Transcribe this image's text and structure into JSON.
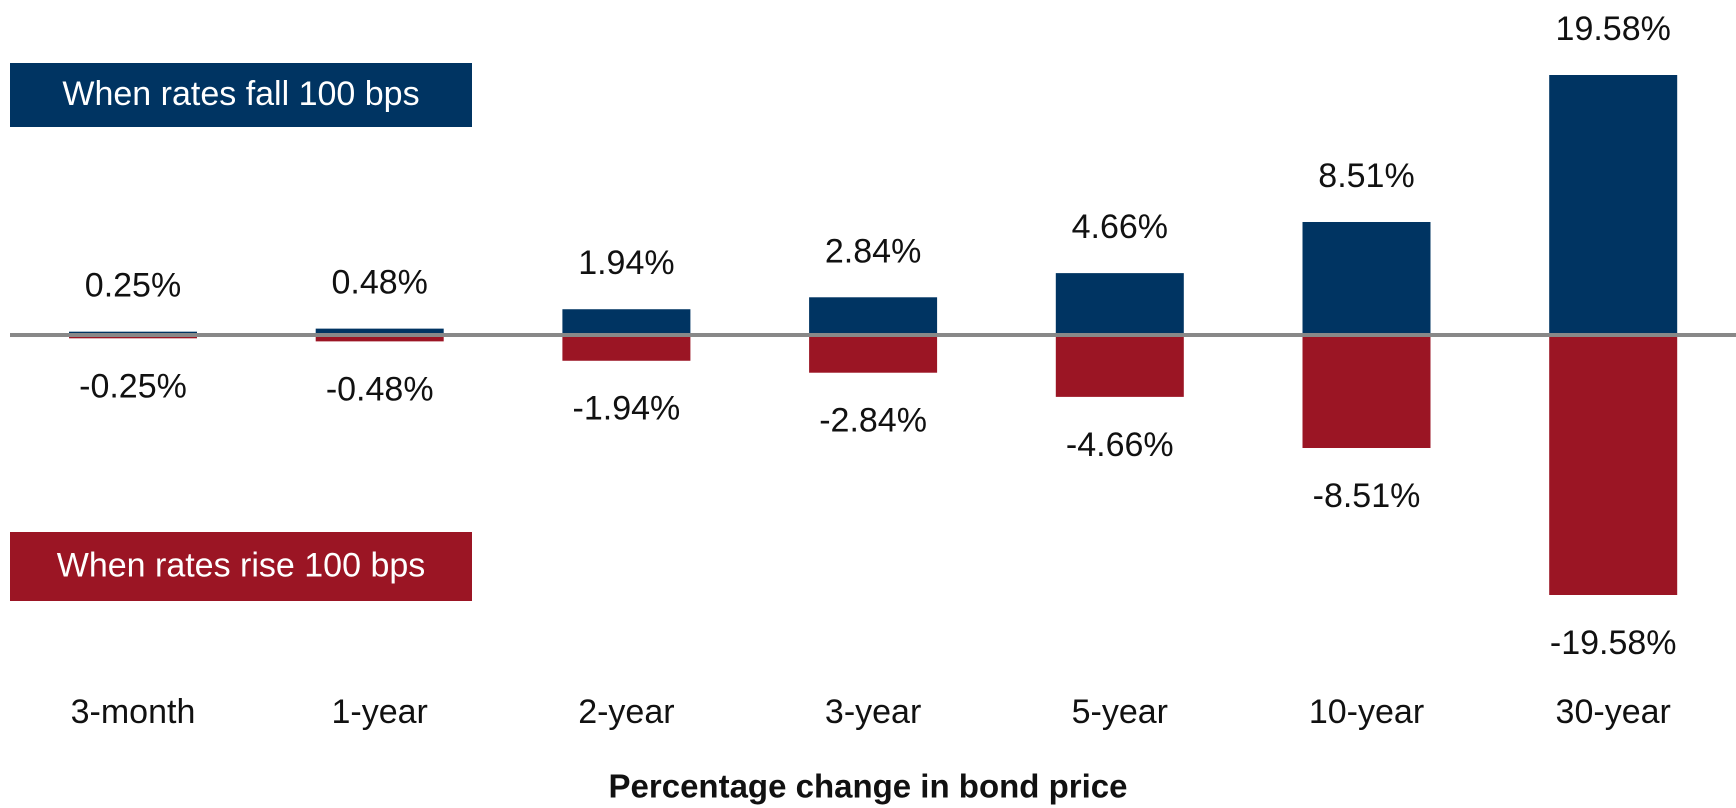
{
  "chart_data": {
    "type": "bar",
    "x_label": "Percentage change in bond price",
    "categories": [
      "3-month",
      "1-year",
      "2-year",
      "3-year",
      "5-year",
      "10-year",
      "30-year"
    ],
    "series": [
      {
        "name": "When rates fall 100 bps",
        "color": "#003462",
        "values": [
          0.25,
          0.48,
          1.94,
          2.84,
          4.66,
          8.51,
          19.58
        ],
        "value_labels": [
          "0.25%",
          "0.48%",
          "1.94%",
          "2.84%",
          "4.66%",
          "8.51%",
          "19.58%"
        ]
      },
      {
        "name": "When rates rise 100 bps",
        "color": "#9b1524",
        "values": [
          -0.25,
          -0.48,
          -1.94,
          -2.84,
          -4.66,
          -8.51,
          -19.58
        ],
        "value_labels": [
          "-0.25%",
          "-0.48%",
          "-1.94%",
          "-2.84%",
          "-4.66%",
          "-8.51%",
          "-19.58%"
        ]
      }
    ]
  }
}
